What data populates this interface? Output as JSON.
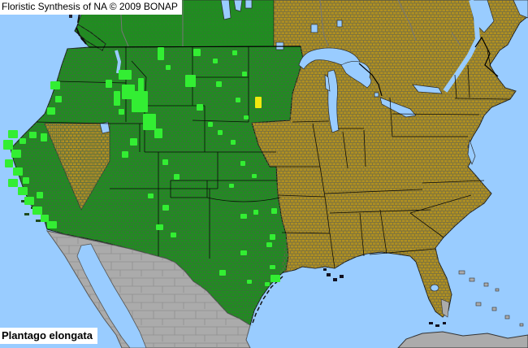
{
  "header": {
    "title": "Floristic Synthesis of NA © 2009 BONAP"
  },
  "species": {
    "label": "Plantago elongata"
  },
  "map": {
    "colors": {
      "water": "#99CCFF",
      "present_state": "#1E8F1E",
      "present_county": "#33EE33",
      "rare_county": "#F0E80F",
      "absent": "#B09020",
      "outside_na": "#ABABAB",
      "state_border": "#000000",
      "county_line_green": "#3E6B3E",
      "county_line_olive": "#6E6A45",
      "county_line_gray": "#8A8A8A",
      "province_border": "#777777",
      "coastline": "#1A1A1A"
    },
    "county_marks": [
      [
        146,
        86,
        16,
        12
      ],
      [
        150,
        104,
        16,
        18
      ],
      [
        162,
        122,
        10,
        10
      ],
      [
        170,
        96,
        7,
        18
      ],
      [
        62,
        100,
        12,
        10
      ],
      [
        58,
        132,
        10,
        9
      ],
      [
        68,
        118,
        8,
        8
      ],
      [
        10,
        160,
        12,
        10
      ],
      [
        4,
        172,
        12,
        12
      ],
      [
        14,
        184,
        12,
        10
      ],
      [
        6,
        196,
        10,
        10
      ],
      [
        16,
        206,
        12,
        10
      ],
      [
        10,
        220,
        12,
        10
      ],
      [
        22,
        230,
        12,
        10
      ],
      [
        30,
        242,
        12,
        10
      ],
      [
        40,
        254,
        12,
        10
      ],
      [
        50,
        264,
        10,
        9
      ],
      [
        58,
        272,
        12,
        9
      ],
      [
        45,
        236,
        8,
        8
      ],
      [
        28,
        218,
        8,
        8
      ],
      [
        36,
        162,
        9,
        8
      ],
      [
        24,
        170,
        8,
        7
      ],
      [
        50,
        164,
        8,
        10
      ],
      [
        140,
        112,
        8,
        18
      ],
      [
        130,
        98,
        8,
        10
      ],
      [
        146,
        134,
        7,
        7
      ],
      [
        194,
        58,
        8,
        16
      ],
      [
        228,
        92,
        13,
        15
      ],
      [
        204,
        80,
        6,
        6
      ],
      [
        238,
        60,
        9,
        9
      ],
      [
        262,
        72,
        6,
        6
      ],
      [
        286,
        62,
        6,
        6
      ],
      [
        298,
        88,
        6,
        6
      ],
      [
        266,
        100,
        7,
        7
      ],
      [
        290,
        120,
        6,
        6
      ],
      [
        242,
        128,
        8,
        8
      ],
      [
        300,
        142,
        6,
        5
      ],
      [
        268,
        160,
        6,
        6
      ],
      [
        284,
        172,
        6,
        6
      ],
      [
        256,
        150,
        6,
        6
      ],
      [
        162,
        112,
        20,
        26
      ],
      [
        176,
        140,
        16,
        20
      ],
      [
        190,
        158,
        10,
        12
      ],
      [
        160,
        170,
        9,
        9
      ],
      [
        150,
        186,
        8,
        8
      ],
      [
        200,
        196,
        7,
        7
      ],
      [
        214,
        214,
        7,
        7
      ],
      [
        200,
        252,
        8,
        7
      ],
      [
        192,
        276,
        9,
        7
      ],
      [
        210,
        286,
        7,
        6
      ],
      [
        182,
        238,
        7,
        6
      ],
      [
        296,
        198,
        6,
        6
      ],
      [
        310,
        214,
        6,
        5
      ],
      [
        296,
        263,
        8,
        6
      ],
      [
        312,
        258,
        6,
        6
      ],
      [
        334,
        256,
        7,
        7
      ],
      [
        282,
        226,
        6,
        5
      ],
      [
        332,
        288,
        7,
        7
      ],
      [
        328,
        298,
        7,
        6
      ],
      [
        296,
        308,
        8,
        6
      ],
      [
        270,
        332,
        8,
        7
      ],
      [
        332,
        326,
        7,
        5
      ],
      [
        333,
        338,
        12,
        9
      ],
      [
        326,
        347,
        6,
        5
      ],
      [
        304,
        344,
        6,
        5
      ]
    ],
    "rare_marks": [
      [
        314,
        119,
        8,
        14
      ]
    ]
  }
}
